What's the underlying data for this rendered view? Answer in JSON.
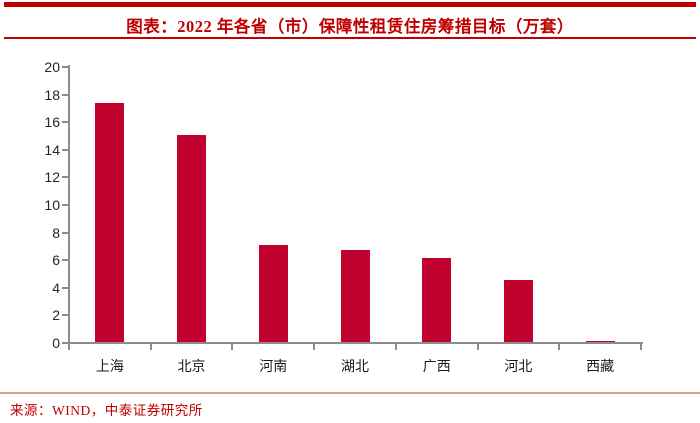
{
  "header": {
    "title": "图表：2022 年各省（市）保障性租赁住房筹措目标（万套）"
  },
  "footer": {
    "source": "来源：WIND，中泰证券研究所"
  },
  "colors": {
    "accent_red": "#C00000",
    "bar_red": "#C1022F",
    "axis_gray": "#8C8C8C",
    "tick_label_black": "#262626",
    "footer_rule_pink": "#DC9A96"
  },
  "chart_data": {
    "type": "bar",
    "categories": [
      "上海",
      "北京",
      "河南",
      "湖北",
      "广西",
      "河北",
      "西藏"
    ],
    "values": [
      17.3,
      15,
      7,
      6.7,
      6.1,
      4.5,
      0.1
    ],
    "title": "2022年各省（市）保障性租赁住房筹措目标（万套）",
    "xlabel": "",
    "ylabel": "",
    "ylim": [
      0,
      20
    ],
    "ytick_step": 2,
    "grid": false,
    "legend": "none",
    "bar_color": "#C1022F"
  }
}
